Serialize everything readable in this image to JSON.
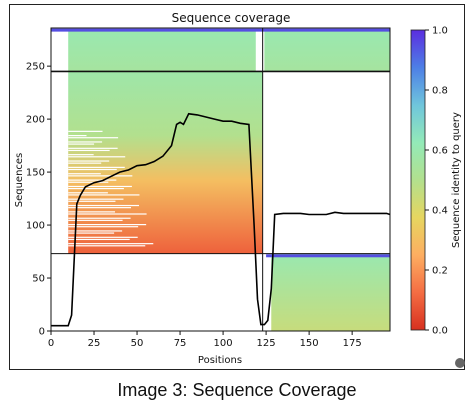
{
  "caption": "Image 3: Sequence Coverage",
  "chart_data": {
    "type": "heatmap",
    "title": "Sequence coverage",
    "xlabel": "Positions",
    "ylabel": "Sequences",
    "xlim": [
      0,
      197
    ],
    "ylim": [
      0,
      286
    ],
    "xticks": [
      0,
      25,
      50,
      75,
      100,
      125,
      150,
      175
    ],
    "yticks": [
      0,
      50,
      100,
      150,
      200,
      250
    ],
    "grid": false,
    "colorbar": {
      "label": "Sequence identity to query",
      "range": [
        0.0,
        1.0
      ],
      "ticks": [
        "0.0",
        "0.2",
        "0.4",
        "0.6",
        "0.8",
        "1.0"
      ],
      "colormap": [
        "#d7301f",
        "#f46d43",
        "#fdae61",
        "#e6d660",
        "#b2e08e",
        "#93eab8",
        "#6fc5dc",
        "#4d7fe6",
        "#5b2ee0"
      ]
    },
    "dividers": {
      "vertical_at": [
        123
      ],
      "horizontal_left_at": [
        245,
        73
      ],
      "horizontal_right_at": [
        245,
        73
      ]
    },
    "blocks": [
      {
        "name": "top-left",
        "x": [
          10,
          119
        ],
        "y": [
          245,
          284
        ],
        "identity_top": 0.6,
        "identity_bottom": 0.55
      },
      {
        "name": "top-right",
        "x": [
          124,
          197
        ],
        "y": [
          245,
          284
        ],
        "identity_top": 0.6,
        "identity_bottom": 0.55
      },
      {
        "name": "main",
        "x": [
          10,
          123
        ],
        "y": [
          73,
          245
        ],
        "identity_top": 0.58,
        "identity_bottom": 0.1
      },
      {
        "name": "bottom-right",
        "x": [
          128,
          197
        ],
        "y": [
          0,
          73
        ],
        "identity_top": 0.6,
        "identity_bottom": 0.45
      }
    ],
    "top_bands": [
      {
        "x": [
          0,
          197
        ],
        "y": 284,
        "identity": 0.95
      },
      {
        "x": [
          125,
          197
        ],
        "y": 71,
        "identity": 0.95
      }
    ],
    "coverage_line": {
      "x": [
        0,
        10,
        12,
        15,
        17,
        20,
        25,
        30,
        35,
        40,
        45,
        50,
        55,
        60,
        65,
        70,
        73,
        75,
        77,
        80,
        85,
        90,
        95,
        100,
        105,
        110,
        115,
        118,
        120,
        122,
        124,
        126,
        128,
        130,
        135,
        140,
        145,
        150,
        155,
        160,
        165,
        170,
        175,
        180,
        185,
        190,
        195,
        197
      ],
      "y": [
        5,
        5,
        15,
        120,
        128,
        136,
        140,
        142,
        146,
        150,
        152,
        156,
        157,
        160,
        165,
        175,
        195,
        197,
        195,
        205,
        204,
        202,
        200,
        198,
        198,
        196,
        195,
        100,
        30,
        6,
        6,
        10,
        40,
        110,
        111,
        111,
        111,
        110,
        110,
        110,
        112,
        111,
        111,
        111,
        111,
        111,
        111,
        110
      ]
    }
  }
}
